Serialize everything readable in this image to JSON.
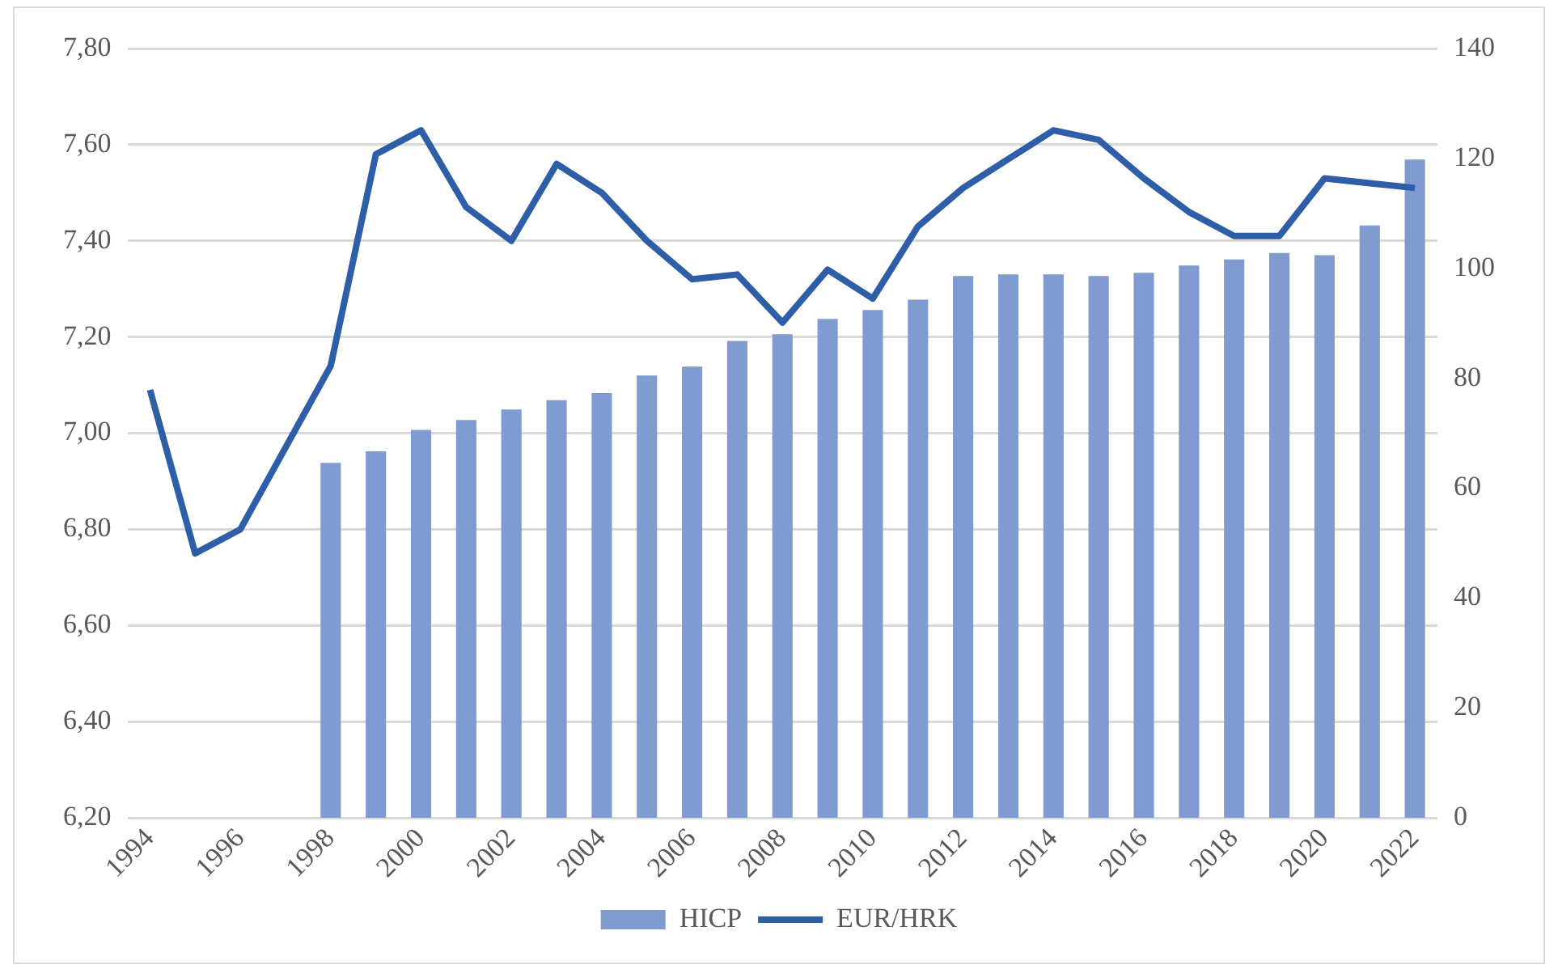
{
  "chart_data": {
    "type": "bar",
    "categories": [
      "1994",
      null,
      "1996",
      null,
      "1998",
      null,
      "2000",
      null,
      "2002",
      null,
      "2004",
      null,
      "2006",
      null,
      "2008",
      null,
      "2010",
      null,
      "2012",
      null,
      "2014",
      null,
      "2016",
      null,
      "2018",
      null,
      "2020",
      null,
      "2022"
    ],
    "series": [
      {
        "name": "HICP",
        "axis": "y2",
        "color": "#7f9bd0",
        "values": [
          null,
          null,
          null,
          null,
          64.6,
          66.7,
          70.6,
          72.4,
          74.3,
          76.0,
          77.3,
          80.5,
          82.1,
          86.8,
          88.0,
          90.8,
          92.4,
          94.3,
          98.6,
          98.9,
          98.9,
          98.6,
          99.2,
          100.5,
          101.6,
          102.8,
          102.4,
          107.8,
          119.8
        ]
      },
      {
        "name": "EUR/HRK",
        "type": "line",
        "axis": "y",
        "color": "#2f5ea8",
        "values": [
          7.09,
          6.75,
          6.8,
          6.97,
          7.14,
          7.58,
          7.63,
          7.47,
          7.4,
          7.56,
          7.5,
          7.4,
          7.32,
          7.33,
          7.23,
          7.34,
          7.28,
          7.43,
          7.51,
          7.57,
          7.63,
          7.61,
          7.53,
          7.46,
          7.41,
          7.41,
          7.53,
          7.52,
          7.51
        ]
      }
    ],
    "ylim": [
      6.2,
      7.8
    ],
    "yticks": [
      {
        "value": 6.2,
        "label": "6,20"
      },
      {
        "value": 6.4,
        "label": "6,40"
      },
      {
        "value": 6.6,
        "label": "6,60"
      },
      {
        "value": 6.8,
        "label": "6,80"
      },
      {
        "value": 7.0,
        "label": "7,00"
      },
      {
        "value": 7.2,
        "label": "7,20"
      },
      {
        "value": 7.4,
        "label": "7,40"
      },
      {
        "value": 7.6,
        "label": "7,60"
      },
      {
        "value": 7.8,
        "label": "7,80"
      }
    ],
    "y2lim": [
      0,
      140
    ],
    "y2ticks": [
      0,
      20,
      40,
      60,
      80,
      100,
      120,
      140
    ],
    "grid": "y",
    "legend": "bottom",
    "marker": "none",
    "line_style": "solid"
  }
}
